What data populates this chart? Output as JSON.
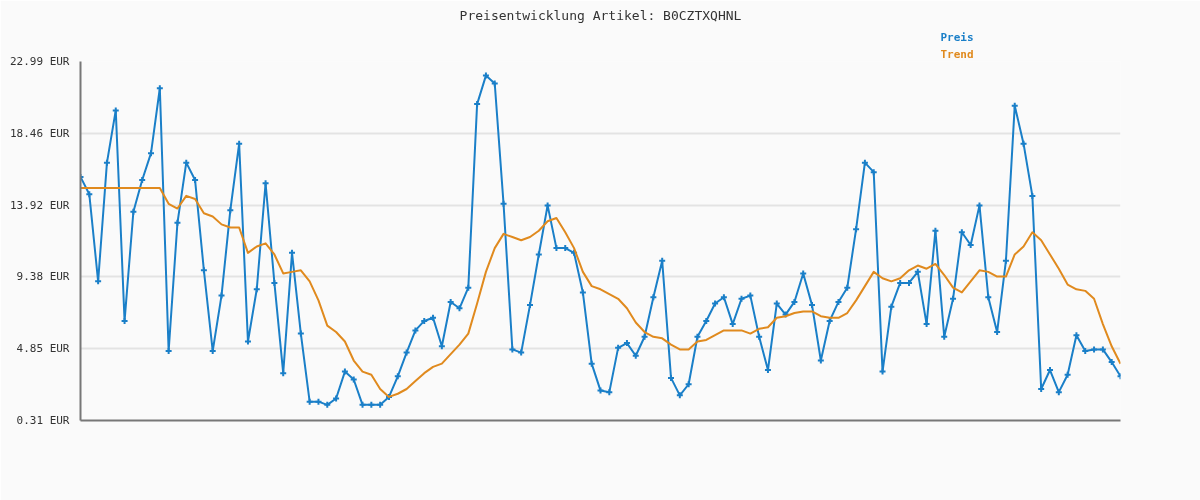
{
  "chart_data": {
    "type": "line",
    "title": "Preisentwicklung Artikel: B0CZTXQHNL",
    "categories": [
      null,
      null,
      null,
      null,
      null,
      null,
      null,
      null,
      null,
      null,
      null,
      null,
      null,
      null,
      null,
      null,
      null,
      null,
      null,
      null,
      null,
      null,
      null,
      null,
      null,
      null,
      null,
      null,
      null,
      null,
      null,
      null,
      null,
      null,
      null,
      null,
      null,
      null,
      null,
      null,
      null,
      null,
      null,
      null,
      null,
      null,
      null,
      null,
      null,
      null,
      null,
      null,
      null,
      null,
      null,
      null,
      null,
      null,
      null,
      null,
      null,
      null,
      null,
      null,
      null,
      null,
      null,
      null,
      null,
      null,
      null,
      null,
      null,
      null,
      null,
      null,
      null,
      null,
      null,
      null,
      null,
      null,
      null,
      null,
      null,
      null,
      null,
      null,
      null,
      null,
      null,
      null,
      null,
      null,
      null,
      null,
      null,
      null,
      null,
      null,
      null,
      null,
      null,
      null,
      null,
      null,
      null,
      null,
      null,
      null,
      null,
      null,
      null,
      null,
      null,
      null,
      null,
      null,
      null
    ],
    "series": [
      {
        "name": "Preis",
        "color": "#1a7fc8",
        "marker": "cross",
        "values": [
          15.7,
          14.6,
          9.1,
          16.6,
          19.9,
          6.6,
          13.5,
          15.5,
          17.2,
          21.3,
          4.7,
          12.8,
          16.6,
          15.5,
          9.8,
          4.7,
          8.2,
          13.6,
          17.8,
          5.3,
          8.6,
          15.3,
          9.0,
          3.3,
          10.9,
          5.8,
          1.5,
          1.5,
          1.3,
          1.7,
          3.4,
          2.9,
          1.3,
          1.3,
          1.3,
          1.8,
          3.1,
          4.6,
          6.0,
          6.6,
          6.8,
          5.0,
          7.8,
          7.4,
          8.7,
          20.3,
          22.1,
          21.6,
          14.0,
          4.8,
          4.6,
          7.6,
          10.8,
          13.9,
          11.2,
          11.2,
          10.9,
          8.4,
          3.9,
          2.2,
          2.1,
          4.9,
          5.2,
          4.4,
          5.6,
          8.1,
          10.4,
          3.0,
          1.9,
          2.6,
          5.6,
          6.6,
          7.7,
          8.1,
          6.4,
          8.0,
          8.2,
          5.6,
          3.5,
          7.7,
          7.0,
          7.8,
          9.6,
          7.6,
          4.1,
          6.6,
          7.8,
          8.7,
          12.4,
          16.6,
          16.0,
          3.4,
          7.5,
          9.0,
          9.0,
          9.7,
          6.4,
          12.3,
          5.6,
          8.0,
          12.2,
          11.4,
          13.9,
          8.1,
          5.9,
          10.4,
          20.2,
          17.8,
          14.5,
          2.3,
          3.5,
          2.1,
          3.2,
          5.7,
          4.7,
          4.8,
          4.8,
          4.0,
          3.1
        ]
      },
      {
        "name": "Trend",
        "color": "#e08a1e",
        "marker": "none",
        "values": [
          15.0,
          15.0,
          15.0,
          15.0,
          15.0,
          15.0,
          15.0,
          15.0,
          15.0,
          15.0,
          14.0,
          13.7,
          14.5,
          14.3,
          13.4,
          13.2,
          12.7,
          12.5,
          12.5,
          10.9,
          11.3,
          11.5,
          10.8,
          9.6,
          9.7,
          9.8,
          9.1,
          7.9,
          6.3,
          5.9,
          5.3,
          4.1,
          3.4,
          3.2,
          2.3,
          1.8,
          2.0,
          2.3,
          2.8,
          3.3,
          3.7,
          3.9,
          4.5,
          5.1,
          5.8,
          7.7,
          9.7,
          11.2,
          12.1,
          11.9,
          11.7,
          11.9,
          12.3,
          12.9,
          13.1,
          12.2,
          11.2,
          9.7,
          8.8,
          8.6,
          8.3,
          8.0,
          7.4,
          6.5,
          5.9,
          5.6,
          5.5,
          5.1,
          4.8,
          4.8,
          5.3,
          5.4,
          5.7,
          6.0,
          6.0,
          6.0,
          5.8,
          6.1,
          6.2,
          6.8,
          6.9,
          7.1,
          7.2,
          7.2,
          6.9,
          6.8,
          6.8,
          7.1,
          7.9,
          8.8,
          9.7,
          9.3,
          9.1,
          9.3,
          9.8,
          10.1,
          9.9,
          10.2,
          9.5,
          8.7,
          8.4,
          9.1,
          9.8,
          9.7,
          9.4,
          9.4,
          10.8,
          11.3,
          12.2,
          11.7,
          10.8,
          9.9,
          8.9,
          8.6,
          8.5,
          8.0,
          6.4,
          5.0,
          3.9
        ]
      }
    ],
    "ylim": [
      0.31,
      22.99
    ],
    "yticks": [
      {
        "value": 0.31,
        "label": "0.31 EUR"
      },
      {
        "value": 4.85,
        "label": "4.85 EUR"
      },
      {
        "value": 9.38,
        "label": "9.38 EUR"
      },
      {
        "value": 13.92,
        "label": "13.92 EUR"
      },
      {
        "value": 18.46,
        "label": "18.46 EUR"
      },
      {
        "value": 22.99,
        "label": "22.99 EUR"
      }
    ],
    "tick_labels": "y",
    "grid": "y",
    "line_style": "solid"
  }
}
